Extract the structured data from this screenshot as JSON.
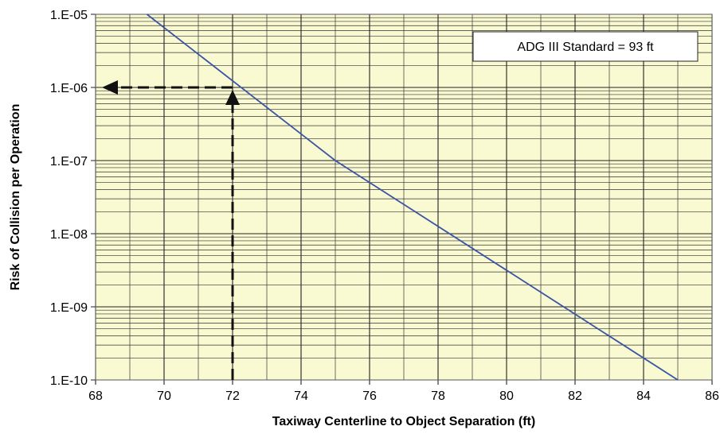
{
  "chart_data": {
    "type": "line",
    "xlabel": "Taxiway Centerline to Object Separation (ft)",
    "ylabel": "Risk of Collision per Operation",
    "xlim": [
      68,
      86
    ],
    "ylim": [
      1e-10,
      1e-05
    ],
    "yscale": "log",
    "background_color": "#fafad2",
    "grid": true,
    "x_ticks": [
      68,
      70,
      72,
      74,
      76,
      78,
      80,
      82,
      84,
      86
    ],
    "x_tick_labels": [
      "68",
      "70",
      "72",
      "74",
      "76",
      "78",
      "80",
      "82",
      "84",
      "86"
    ],
    "y_ticks": [
      1e-10,
      1e-09,
      1e-08,
      1e-07,
      1e-06,
      1e-05
    ],
    "y_tick_labels": [
      "1.E-10",
      "1.E-09",
      "1.E-08",
      "1.E-07",
      "1.E-06",
      "1.E-05"
    ],
    "series": [
      {
        "color": "#3a55a4",
        "x": [
          69.5,
          75,
          85
        ],
        "y": [
          1e-05,
          1e-07,
          1e-10
        ]
      }
    ],
    "reference_lines": {
      "color": "#111111",
      "point": [
        72,
        1e-06
      ],
      "horizontal_to_x": 68,
      "vertical_to_y": 1e-10
    },
    "annotation": {
      "text": "ADG III Standard = 93 ft"
    }
  }
}
